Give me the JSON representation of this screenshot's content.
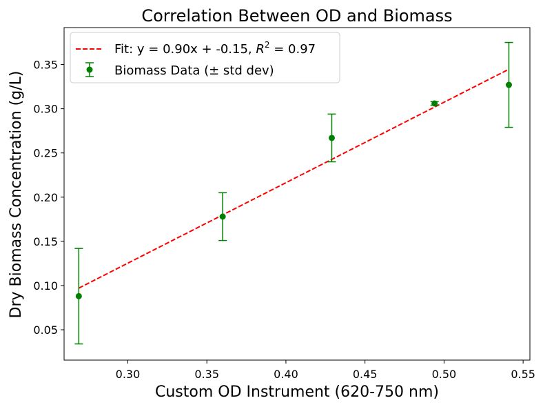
{
  "chart_data": {
    "type": "scatter",
    "title": "Correlation Between OD and Biomass",
    "xlabel": "Custom OD Instrument (620-750 nm)",
    "ylabel": "Dry Biomass Concentration (g/L)",
    "xlim": [
      0.2597,
      0.5543
    ],
    "ylim": [
      0.0157,
      0.3918
    ],
    "xticks": [
      0.3,
      0.35,
      0.4,
      0.45,
      0.5,
      0.55
    ],
    "xtick_labels": [
      "0.30",
      "0.35",
      "0.40",
      "0.45",
      "0.50",
      "0.55"
    ],
    "yticks": [
      0.05,
      0.1,
      0.15,
      0.2,
      0.25,
      0.3,
      0.35
    ],
    "ytick_labels": [
      "0.05",
      "0.10",
      "0.15",
      "0.20",
      "0.25",
      "0.30",
      "0.35"
    ],
    "grid": false,
    "legend_position": "top-left",
    "series": [
      {
        "name": "Biomass Data (± std dev)",
        "kind": "errorbar",
        "color": "#008000",
        "x": [
          0.269,
          0.36,
          0.429,
          0.494,
          0.541
        ],
        "y": [
          0.088,
          0.178,
          0.267,
          0.306,
          0.327
        ],
        "yerr": [
          0.054,
          0.027,
          0.027,
          0.002,
          0.048
        ]
      },
      {
        "name": "Fit: y = 0.90x + -0.15, R² = 0.97",
        "name_main": "Fit: y = 0.90x + -0.15, ",
        "name_r": "R",
        "name_sup": "2",
        "name_tail": " = 0.97",
        "kind": "line",
        "style": "dashed",
        "color": "#ff0000",
        "x": [
          0.269,
          0.541
        ],
        "y": [
          0.0971,
          0.3447
        ]
      }
    ]
  }
}
